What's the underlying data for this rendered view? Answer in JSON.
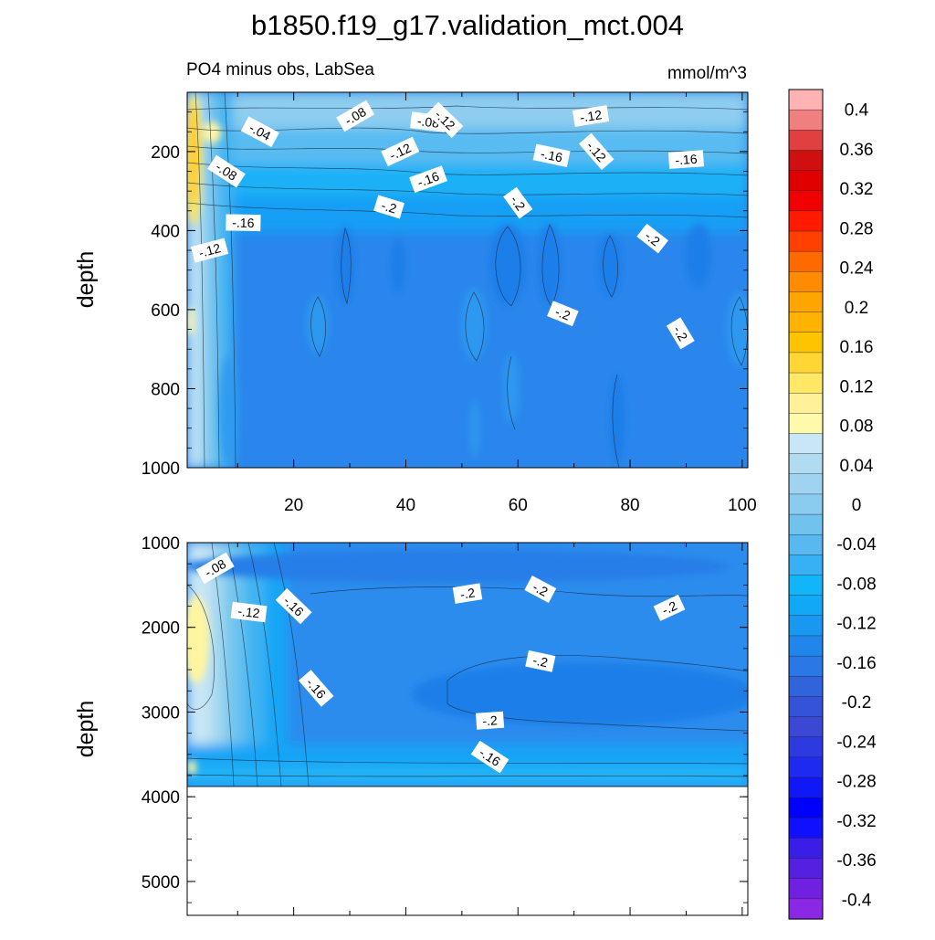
{
  "chart_data": {
    "type": "heatmap",
    "subtype": "filled-contour depth section",
    "title": "b1850.f19_g17.validation_mct.004",
    "subtitle_left": "PO4 minus obs, LabSea",
    "units": "mmol/m^3",
    "ylabel": "depth",
    "xlabel": "",
    "xlim": [
      1,
      101
    ],
    "x_ticks": [
      "20",
      "40",
      "60",
      "80",
      "100"
    ],
    "panels": [
      {
        "name": "upper",
        "ylim": [
          50,
          1000
        ],
        "y_ticks": [
          "200",
          "400",
          "600",
          "800",
          "1000"
        ],
        "contour_labels": [
          {
            "text": "-.08",
            "x": 31,
            "y": 110
          },
          {
            "text": "-.08",
            "x": 44,
            "y": 125
          },
          {
            "text": "-.12",
            "x": 47,
            "y": 120
          },
          {
            "text": "-.12",
            "x": 73,
            "y": 110
          },
          {
            "text": "-.04",
            "x": 14,
            "y": 150
          },
          {
            "text": "-.12",
            "x": 39,
            "y": 200
          },
          {
            "text": "-.16",
            "x": 66,
            "y": 210
          },
          {
            "text": "-.12",
            "x": 74,
            "y": 200
          },
          {
            "text": "-.16",
            "x": 90,
            "y": 220
          },
          {
            "text": "-.08",
            "x": 8,
            "y": 250
          },
          {
            "text": "-.16",
            "x": 44,
            "y": 270
          },
          {
            "text": "-.2",
            "x": 37,
            "y": 340
          },
          {
            "text": "-.2",
            "x": 60,
            "y": 330
          },
          {
            "text": "-.16",
            "x": 11,
            "y": 380
          },
          {
            "text": "-.2",
            "x": 84,
            "y": 420
          },
          {
            "text": "-.12",
            "x": 5,
            "y": 450
          },
          {
            "text": "-.2",
            "x": 68,
            "y": 610
          },
          {
            "text": "-.2",
            "x": 89,
            "y": 660
          }
        ]
      },
      {
        "name": "lower",
        "ylim": [
          1000,
          5400
        ],
        "y_ticks": [
          "1000",
          "2000",
          "3000",
          "4000",
          "5000"
        ],
        "bottom": 3870,
        "contour_labels": [
          {
            "text": "-.08",
            "x": 6,
            "y": 1300
          },
          {
            "text": "-.12",
            "x": 12,
            "y": 1820
          },
          {
            "text": "-.16",
            "x": 20,
            "y": 1750
          },
          {
            "text": "-.2",
            "x": 51,
            "y": 1600
          },
          {
            "text": "-.2",
            "x": 64,
            "y": 1550
          },
          {
            "text": "-.2",
            "x": 87,
            "y": 1770
          },
          {
            "text": "-.2",
            "x": 64,
            "y": 2400
          },
          {
            "text": "-.16",
            "x": 24,
            "y": 2720
          },
          {
            "text": "-.2",
            "x": 55,
            "y": 3100
          },
          {
            "text": "-.16",
            "x": 55,
            "y": 3530
          }
        ]
      }
    ],
    "colorbar": {
      "labels": [
        "0.4",
        "0.36",
        "0.32",
        "0.28",
        "0.24",
        "0.2",
        "0.16",
        "0.12",
        "0.08",
        "0.04",
        "0",
        "-0.04",
        "-0.08",
        "-0.12",
        "-0.16",
        "-0.2",
        "-0.24",
        "-0.28",
        "-0.32",
        "-0.36",
        "-0.4"
      ],
      "colors": [
        "#ffb3b3",
        "#f08080",
        "#e04040",
        "#d01010",
        "#e00000",
        "#f00000",
        "#ff1a00",
        "#ff4000",
        "#ff6a00",
        "#ff8c00",
        "#ffa500",
        "#ffb300",
        "#ffc400",
        "#ffd633",
        "#ffe866",
        "#fff199",
        "#fffaaa",
        "#c8e6f5",
        "#b0dcf2",
        "#9fd3ef",
        "#8accef",
        "#70c3ee",
        "#58b8f0",
        "#38b0f4",
        "#12b5fa",
        "#11a8f8",
        "#1898f0",
        "#2186ec",
        "#2a77e6",
        "#3064dc",
        "#3553d8",
        "#3a48d4",
        "#2d3ae0",
        "#1f2af0",
        "#1018f8",
        "#0000ff",
        "#1010ff",
        "#3a1ee8",
        "#5520e0",
        "#7020e0",
        "#8a28e6"
      ]
    },
    "grid": false,
    "legend": "colorbar-right"
  }
}
